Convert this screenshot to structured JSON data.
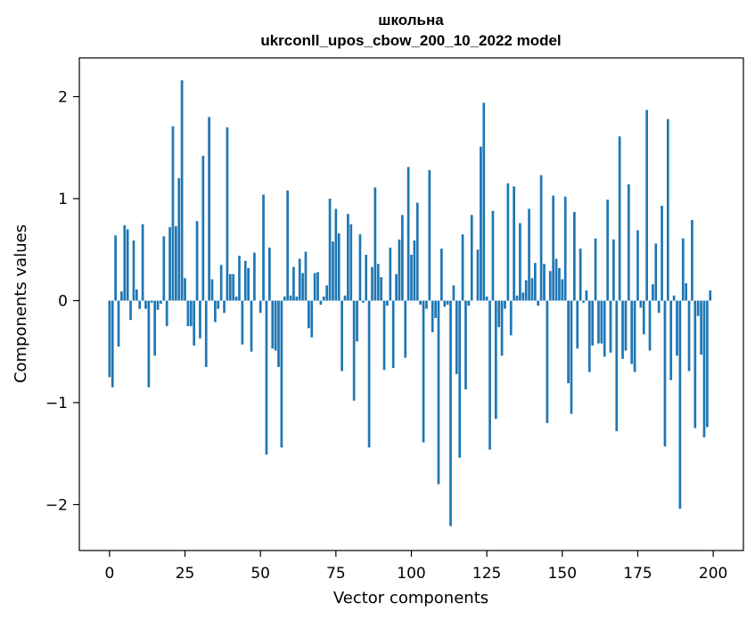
{
  "chart_data": {
    "type": "bar",
    "title": "школьна",
    "subtitle": "ukrconll_upos_cbow_200_10_2022 model",
    "xlabel": "Vector components",
    "ylabel": "Components values",
    "xlim": [
      -10,
      210
    ],
    "ylim": [
      -2.45,
      2.38
    ],
    "xticks": [
      0,
      25,
      50,
      75,
      100,
      125,
      150,
      175,
      200
    ],
    "yticks": [
      -2,
      -1,
      0,
      1,
      2
    ],
    "ytick_labels": [
      "−2",
      "−1",
      "0",
      "1",
      "2"
    ],
    "grid": false,
    "bar_color": "#1f77b4",
    "values": [
      -0.75,
      -0.85,
      0.64,
      -0.45,
      0.09,
      0.74,
      0.7,
      -0.19,
      0.59,
      0.11,
      -0.08,
      0.75,
      -0.08,
      -0.85,
      -0.02,
      -0.54,
      -0.09,
      -0.03,
      0.63,
      -0.25,
      0.72,
      1.71,
      0.73,
      1.2,
      2.16,
      0.22,
      -0.25,
      -0.25,
      -0.44,
      0.78,
      -0.37,
      1.42,
      -0.65,
      1.8,
      0.21,
      -0.21,
      -0.08,
      0.35,
      -0.12,
      1.7,
      0.26,
      0.26,
      0.04,
      0.44,
      -0.43,
      0.39,
      0.32,
      -0.5,
      0.47,
      0.0,
      -0.12,
      1.04,
      -1.51,
      0.52,
      -0.47,
      -0.49,
      -0.65,
      -1.44,
      0.04,
      1.08,
      0.05,
      0.33,
      0.04,
      0.41,
      0.27,
      0.48,
      -0.27,
      -0.36,
      0.27,
      0.28,
      -0.04,
      0.04,
      0.15,
      1.0,
      0.58,
      0.9,
      0.66,
      -0.69,
      0.05,
      0.85,
      0.75,
      -0.98,
      -0.4,
      0.65,
      -0.02,
      0.45,
      -1.44,
      0.33,
      1.11,
      0.36,
      0.23,
      -0.68,
      -0.05,
      0.52,
      -0.66,
      0.26,
      0.6,
      0.84,
      -0.56,
      1.31,
      0.45,
      0.59,
      0.96,
      -0.04,
      -1.39,
      -0.08,
      1.28,
      -0.31,
      -0.17,
      -1.8,
      0.51,
      -0.06,
      -0.04,
      -2.21,
      0.15,
      -0.72,
      -1.54,
      0.65,
      -0.87,
      -0.05,
      0.84,
      0.0,
      0.5,
      1.51,
      1.94,
      0.04,
      -1.46,
      0.88,
      -1.16,
      -0.26,
      -0.54,
      -0.08,
      1.15,
      -0.34,
      1.12,
      0.05,
      0.76,
      0.08,
      0.2,
      0.9,
      0.22,
      0.37,
      -0.05,
      1.23,
      0.36,
      -1.2,
      0.29,
      1.03,
      0.41,
      0.32,
      0.21,
      1.02,
      -0.81,
      -1.11,
      0.87,
      -0.47,
      0.51,
      -0.02,
      0.1,
      -0.7,
      -0.44,
      0.61,
      -0.42,
      -0.42,
      -0.55,
      0.99,
      -0.51,
      0.6,
      -1.28,
      1.61,
      -0.57,
      -0.49,
      1.14,
      -0.62,
      -0.7,
      0.69,
      -0.07,
      -0.33,
      1.87,
      -0.49,
      0.16,
      0.56,
      -0.12,
      0.93,
      -1.43,
      1.78,
      -0.78,
      0.05,
      -0.54,
      -2.04,
      0.61,
      0.17,
      -0.69,
      0.79,
      -1.25,
      -0.15,
      -0.53,
      -1.34,
      -1.24,
      0.1
    ]
  }
}
